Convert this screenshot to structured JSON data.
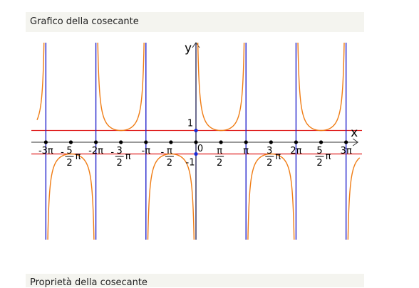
{
  "header": {
    "title": "Grafico della cosecante"
  },
  "footer": {
    "title": "Proprietà della cosecante"
  },
  "chart_data": {
    "type": "line",
    "title": "",
    "function": "y = csc(x)",
    "xlabel": "x",
    "ylabel": "y",
    "xlim": [
      -10.0,
      10.3
    ],
    "ylim": [
      -5.0,
      5.0
    ],
    "asymptotes_x": [
      -9.4248,
      -6.2832,
      -3.1416,
      0,
      3.1416,
      6.2832,
      9.4248
    ],
    "horizontal_lines_y": [
      1,
      -1
    ],
    "series": [
      {
        "values": "y = 1/sin(x) for x in [-10.0, 10.3] excluding x = k·π"
      }
    ],
    "x_tick_values": [
      -9.4248,
      -7.854,
      -6.2832,
      -4.7124,
      -3.1416,
      -1.5708,
      0,
      1.5708,
      3.1416,
      4.7124,
      6.2832,
      7.854,
      9.4248
    ],
    "x_tick_labels": [
      {
        "pre": "-",
        "num": "3",
        "pi": "π"
      },
      {
        "pre": "-",
        "num": "5",
        "den": "2",
        "pi": "π"
      },
      {
        "pre": "-",
        "num": "2",
        "pi": "π"
      },
      {
        "pre": "-",
        "num": "3",
        "den": "2",
        "pi": "π"
      },
      {
        "pre": "-",
        "num": "",
        "pi": "π"
      },
      {
        "pre": "-",
        "num": "π",
        "den": "2"
      },
      {
        "pre": "",
        "num": "0"
      },
      {
        "pre": "",
        "num": "π",
        "den": "2"
      },
      {
        "pre": "",
        "num": "",
        "pi": "π"
      },
      {
        "pre": "",
        "num": "3",
        "den": "2",
        "pi": "π"
      },
      {
        "pre": "",
        "num": "2",
        "pi": "π"
      },
      {
        "pre": "",
        "num": "5",
        "den": "2",
        "pi": "π"
      },
      {
        "pre": "",
        "num": "3",
        "pi": "π"
      }
    ],
    "y_tick_labels": [
      {
        "value": 1,
        "label": "1"
      },
      {
        "value": -1,
        "label": "-1"
      }
    ],
    "colors": {
      "curve": "#f07c14",
      "asymptote": "#2222cc",
      "horizontal": "#e02020",
      "axis": "#333333",
      "point": "#000000",
      "y_point": "#1a2bd6"
    }
  }
}
